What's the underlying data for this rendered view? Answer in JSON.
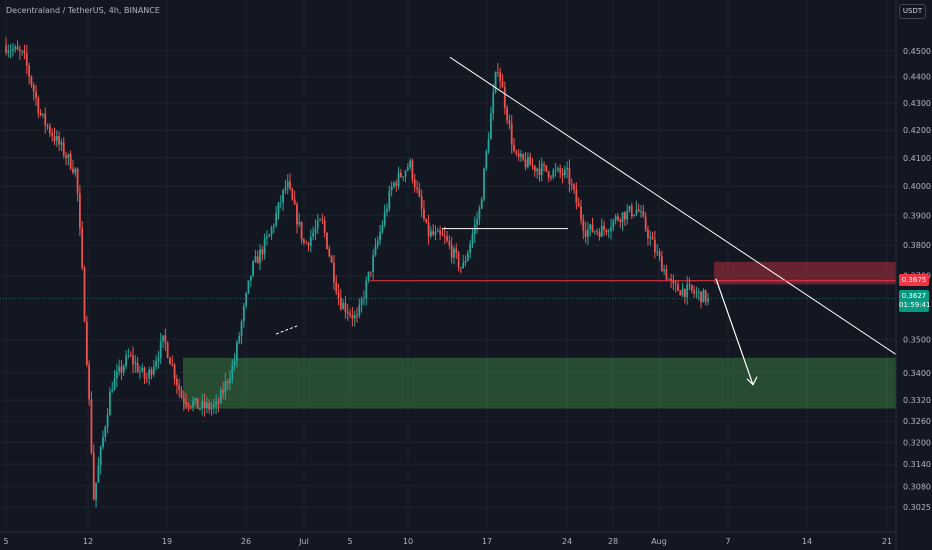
{
  "symbol": {
    "title": "Decentraland / TetherUS, 4h, BINANCE"
  },
  "currency_button": {
    "label": "USDT"
  },
  "badges": {
    "resistance_price": "0.3675",
    "last_price": "0.3627",
    "countdown": "01:59:41"
  },
  "colors": {
    "background": "#131722",
    "up": "#26a69a",
    "down": "#ef5350",
    "resistance_zone": "#f23645",
    "support_zone": "#4caf50",
    "drawing": "#ffffff"
  },
  "chart_data": {
    "type": "candlestick",
    "title": "Decentraland / TetherUS, 4h, BINANCE",
    "xlabel": "",
    "ylabel": "",
    "scale": "log",
    "ylim": [
      0.302,
      0.4535
    ],
    "grid": true,
    "x_tick_labels": [
      "5",
      "12",
      "19",
      "26",
      "Jul",
      "5",
      "10",
      "17",
      "24",
      "28",
      "Aug",
      "7",
      "14",
      "21"
    ],
    "y_tick_labels": [
      "0.4500",
      "0.4400",
      "0.4300",
      "0.4200",
      "0.4100",
      "0.4000",
      "0.3900",
      "0.3800",
      "0.3700",
      "0.3500",
      "0.3400",
      "0.3320",
      "0.3260",
      "0.3200",
      "0.3140",
      "0.3080",
      "0.3025"
    ],
    "path_points": [
      [
        "5",
        0.452
      ],
      [
        "5",
        0.448
      ],
      [
        "5",
        0.425
      ],
      [
        "5",
        0.415
      ],
      [
        "5",
        0.405
      ],
      [
        "12",
        0.305
      ],
      [
        "12",
        0.336
      ],
      [
        "12",
        0.345
      ],
      [
        "12",
        0.338
      ],
      [
        "12",
        0.35
      ],
      [
        "12",
        0.333
      ],
      [
        "19",
        0.33
      ],
      [
        "19",
        0.33
      ],
      [
        "19",
        0.343
      ],
      [
        "19",
        0.372
      ],
      [
        "19",
        0.383
      ],
      [
        "19",
        0.401
      ],
      [
        "26",
        0.38
      ],
      [
        "26",
        0.388
      ],
      [
        "26",
        0.362
      ],
      [
        "26",
        0.356
      ],
      [
        "Jul",
        0.377
      ],
      [
        "Jul",
        0.4
      ],
      [
        "Jul",
        0.408
      ],
      [
        "5",
        0.384
      ],
      [
        "5",
        0.382
      ],
      [
        "10",
        0.372
      ],
      [
        "10",
        0.392
      ],
      [
        "10",
        0.445
      ],
      [
        "17",
        0.41
      ],
      [
        "17",
        0.407
      ],
      [
        "17",
        0.405
      ],
      [
        "24",
        0.404
      ],
      [
        "24",
        0.385
      ],
      [
        "28",
        0.385
      ],
      [
        "28",
        0.39
      ],
      [
        "28",
        0.392
      ],
      [
        "Aug",
        0.378
      ],
      [
        "Aug",
        0.366
      ],
      [
        "Aug",
        0.365
      ],
      [
        "Aug",
        0.3627
      ]
    ],
    "last_price": 0.3627,
    "annotations": {
      "resistance_zone": [
        0.3672,
        0.3745
      ],
      "support_zone": [
        0.3296,
        0.3445
      ],
      "triangle_apex": 0.4475,
      "triangle_end": 0.3455,
      "horizontal_line_upper": 0.3855,
      "horizontal_line_lower": 0.3684,
      "projected_arrow": [
        0.369,
        0.3365
      ]
    }
  }
}
